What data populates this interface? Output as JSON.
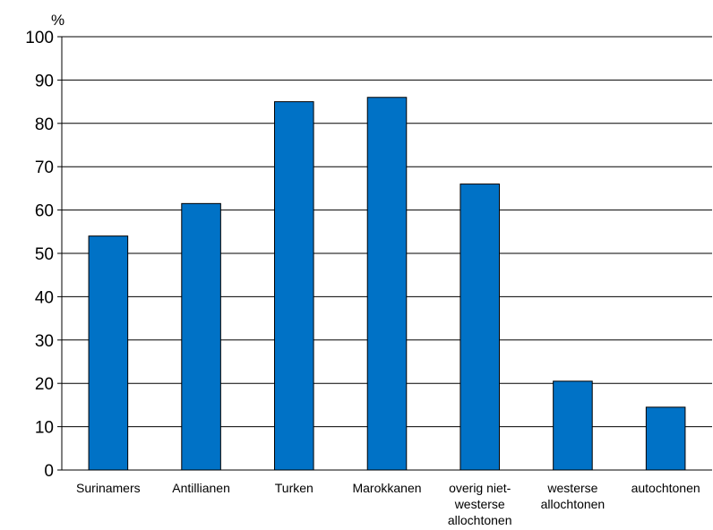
{
  "chart_data": {
    "type": "bar",
    "y_unit_label": "%",
    "categories": [
      [
        "Surinamers"
      ],
      [
        "Antillianen"
      ],
      [
        "Turken"
      ],
      [
        "Marokkanen"
      ],
      [
        "overig niet-",
        "westerse",
        "allochtonen"
      ],
      [
        "westerse",
        "allochtonen"
      ],
      [
        "autochtonen"
      ]
    ],
    "values": [
      54,
      61.5,
      85,
      86,
      66,
      20.5,
      14.5
    ],
    "ylim": [
      0,
      100
    ],
    "yticks": [
      0,
      10,
      20,
      30,
      40,
      50,
      60,
      70,
      80,
      90,
      100
    ],
    "grid": true,
    "bar_color": "#0072C6"
  }
}
